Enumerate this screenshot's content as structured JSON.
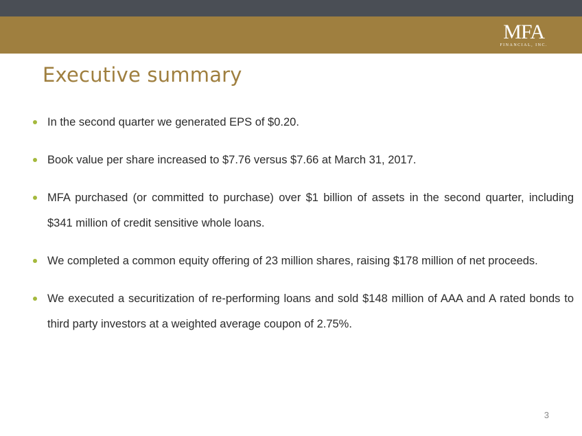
{
  "header": {
    "logo_main": "MFA",
    "logo_sub": "FINANCIAL, INC."
  },
  "title": "Executive summary",
  "bullets": [
    "In the second quarter we generated EPS of $0.20.",
    "Book value per share increased to $7.76 versus $7.66 at March 31, 2017.",
    "MFA purchased (or committed to purchase) over $1 billion of assets in the second quarter, including $341 million of credit sensitive whole loans.",
    "We completed a common equity offering of 23 million shares, raising $178 million of net proceeds.",
    "We executed a securitization of re-performing loans and sold $148 million of AAA and A rated bonds to third party investors at a weighted average coupon of 2.75%."
  ],
  "page_number": "3",
  "colors": {
    "top_bar": "#4a4e55",
    "gold": "#9f7f3f",
    "bullet_dot": "#a4b93c",
    "text": "#2b2b2b"
  }
}
